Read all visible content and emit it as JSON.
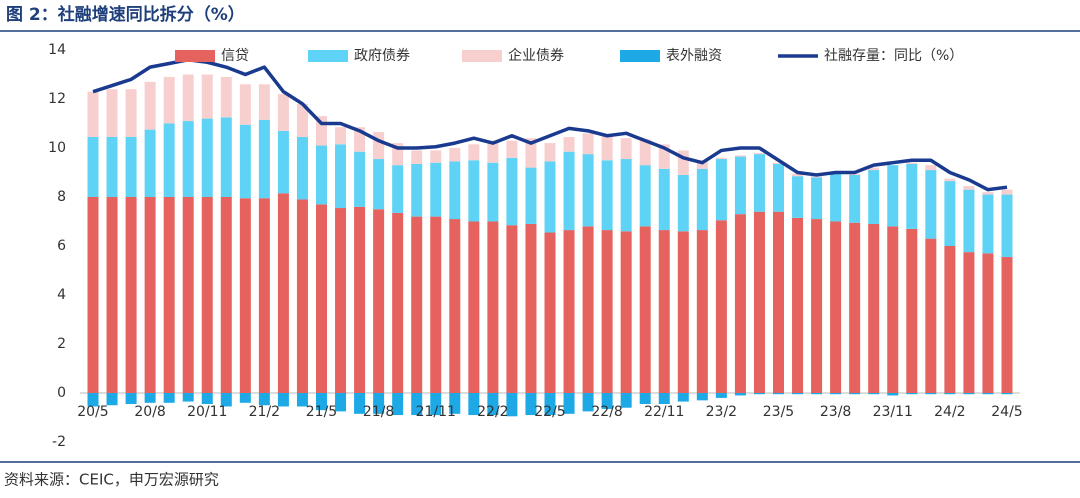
{
  "title": "图 2：社融增速同比拆分（%）",
  "source": "资料来源：CEIC，申万宏源研究",
  "chart_data": {
    "type": "bar",
    "stacked": true,
    "categories": [
      "20/5",
      null,
      null,
      "20/8",
      null,
      null,
      "20/11",
      null,
      null,
      "21/2",
      null,
      null,
      "21/5",
      null,
      null,
      "21/8",
      null,
      null,
      "21/11",
      null,
      null,
      "22/2",
      null,
      null,
      "22/5",
      null,
      null,
      "22/8",
      null,
      null,
      "22/11",
      null,
      null,
      "23/2",
      null,
      null,
      "23/5",
      null,
      null,
      "23/8",
      null,
      null,
      "23/11",
      null,
      null,
      "24/2",
      null,
      null,
      "24/5"
    ],
    "series": [
      {
        "name": "信贷",
        "color": "#e5625e",
        "values": [
          8.0,
          8.0,
          8.0,
          8.0,
          8.0,
          8.0,
          8.0,
          8.0,
          7.95,
          7.95,
          8.15,
          7.9,
          7.7,
          7.55,
          7.6,
          7.5,
          7.35,
          7.2,
          7.2,
          7.1,
          7.0,
          7.0,
          6.85,
          6.9,
          6.55,
          6.65,
          6.8,
          6.65,
          6.6,
          6.8,
          6.65,
          6.6,
          6.65,
          7.05,
          7.3,
          7.4,
          7.4,
          7.15,
          7.1,
          7.0,
          6.95,
          6.9,
          6.8,
          6.7,
          6.3,
          6.0,
          5.75,
          5.7,
          5.55
        ]
      },
      {
        "name": "政府债券",
        "color": "#5fd3f5",
        "values": [
          2.45,
          2.45,
          2.45,
          2.75,
          3.0,
          3.1,
          3.2,
          3.25,
          3.0,
          3.2,
          2.55,
          2.55,
          2.4,
          2.6,
          2.25,
          2.05,
          1.95,
          2.15,
          2.2,
          2.35,
          2.5,
          2.4,
          2.75,
          2.3,
          2.9,
          3.2,
          2.95,
          2.85,
          2.95,
          2.5,
          2.5,
          2.3,
          2.5,
          2.5,
          2.35,
          2.35,
          1.95,
          1.7,
          1.7,
          1.95,
          1.95,
          2.2,
          2.5,
          2.65,
          2.8,
          2.65,
          2.55,
          2.4,
          2.55
        ]
      },
      {
        "name": "企业债券",
        "color": "#f8cfcf",
        "values": [
          1.85,
          1.95,
          1.95,
          1.95,
          1.9,
          1.9,
          1.8,
          1.65,
          1.65,
          1.45,
          1.5,
          1.35,
          1.2,
          0.7,
          1.0,
          1.1,
          0.9,
          0.55,
          0.5,
          0.55,
          0.65,
          0.9,
          0.7,
          1.2,
          0.75,
          0.6,
          0.85,
          1.0,
          0.85,
          1.05,
          1.0,
          1.0,
          0.35,
          0.05,
          0.05,
          0.05,
          0.05,
          0.1,
          0.05,
          0,
          0.05,
          0.1,
          0,
          0.05,
          0.2,
          0.1,
          0.15,
          0.1,
          0.2
        ]
      },
      {
        "name": "表外融资",
        "color": "#1ca9e6",
        "values": [
          -0.55,
          -0.5,
          -0.45,
          -0.4,
          -0.4,
          -0.35,
          -0.45,
          -0.55,
          -0.4,
          -0.5,
          -0.55,
          -0.55,
          -0.7,
          -0.75,
          -0.85,
          -0.85,
          -0.9,
          -0.9,
          -0.9,
          -0.85,
          -0.9,
          -0.9,
          -0.95,
          -0.9,
          -0.9,
          -0.85,
          -0.75,
          -0.65,
          -0.6,
          -0.45,
          -0.45,
          -0.35,
          -0.3,
          -0.2,
          -0.1,
          -0.05,
          -0.05,
          -0.05,
          -0.05,
          -0.05,
          -0.05,
          -0.05,
          -0.1,
          -0.05,
          -0.05,
          -0.05,
          -0.05,
          -0.05,
          -0.05
        ]
      },
      {
        "name": "社融存量：同比（%）",
        "color": "#1a3a8f",
        "type": "line",
        "values": [
          12.3,
          12.55,
          12.8,
          13.3,
          13.45,
          13.6,
          13.5,
          13.3,
          13.0,
          13.3,
          12.3,
          11.8,
          11.0,
          11.0,
          10.7,
          10.3,
          10.0,
          10.0,
          10.05,
          10.2,
          10.4,
          10.2,
          10.5,
          10.2,
          10.5,
          10.8,
          10.7,
          10.5,
          10.6,
          10.3,
          10.0,
          9.6,
          9.4,
          9.9,
          10.0,
          10.0,
          9.5,
          9.0,
          8.9,
          9.0,
          9.0,
          9.3,
          9.4,
          9.5,
          9.5,
          9.0,
          8.7,
          8.3,
          8.4
        ]
      }
    ],
    "ylim": [
      -2,
      14
    ],
    "yticks": [
      -2,
      0,
      2,
      4,
      6,
      8,
      10,
      12,
      14
    ],
    "legend": "top"
  }
}
